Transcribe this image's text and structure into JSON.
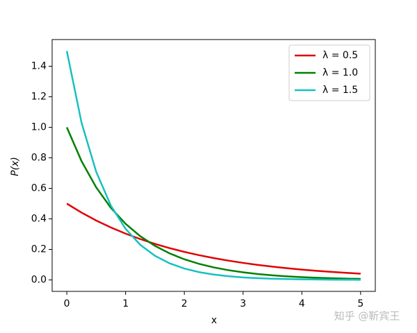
{
  "chart_data": {
    "type": "line",
    "x_label": "x",
    "y_label": "P(x)",
    "x": [
      0,
      0.25,
      0.5,
      0.75,
      1,
      1.25,
      1.5,
      1.75,
      2,
      2.25,
      2.5,
      2.75,
      3,
      3.25,
      3.5,
      3.75,
      4,
      4.25,
      4.5,
      4.75,
      5
    ],
    "series": [
      {
        "name": "λ = 0.5",
        "color": "#e00000",
        "values": [
          0.5,
          0.4412,
          0.3894,
          0.3436,
          0.3033,
          0.2676,
          0.2362,
          0.2084,
          0.1839,
          0.1623,
          0.1433,
          0.1264,
          0.1116,
          0.0985,
          0.0869,
          0.0767,
          0.0677,
          0.0597,
          0.0527,
          0.0465,
          0.041
        ]
      },
      {
        "name": "λ = 1.0",
        "color": "#008000",
        "values": [
          1,
          0.7788,
          0.6065,
          0.4724,
          0.3679,
          0.2865,
          0.2231,
          0.1738,
          0.1353,
          0.1054,
          0.0821,
          0.0639,
          0.0498,
          0.0388,
          0.0302,
          0.0235,
          0.0183,
          0.0143,
          0.0111,
          0.0087,
          0.0067
        ]
      },
      {
        "name": "λ = 1.5",
        "color": "#17c0c0",
        "values": [
          1.5,
          1.0309,
          0.7085,
          0.487,
          0.3347,
          0.23,
          0.1581,
          0.1087,
          0.0747,
          0.0513,
          0.0353,
          0.0242,
          0.0167,
          0.0114,
          0.0079,
          0.0054,
          0.0037,
          0.0026,
          0.0018,
          0.0012,
          0.0008
        ]
      }
    ],
    "xlim": [
      -0.25,
      5.25
    ],
    "xticks": [
      0,
      1,
      2,
      3,
      4,
      5
    ],
    "ylim": [
      -0.075,
      1.575
    ],
    "yticks": [
      {
        "value": 0,
        "label": "0.0"
      },
      0.2,
      0.4,
      0.6,
      0.8,
      {
        "value": 1,
        "label": "1.0"
      },
      1.2,
      1.4
    ],
    "grid": false,
    "legend": "upper right",
    "watermark": "知乎 @靳宾王"
  }
}
